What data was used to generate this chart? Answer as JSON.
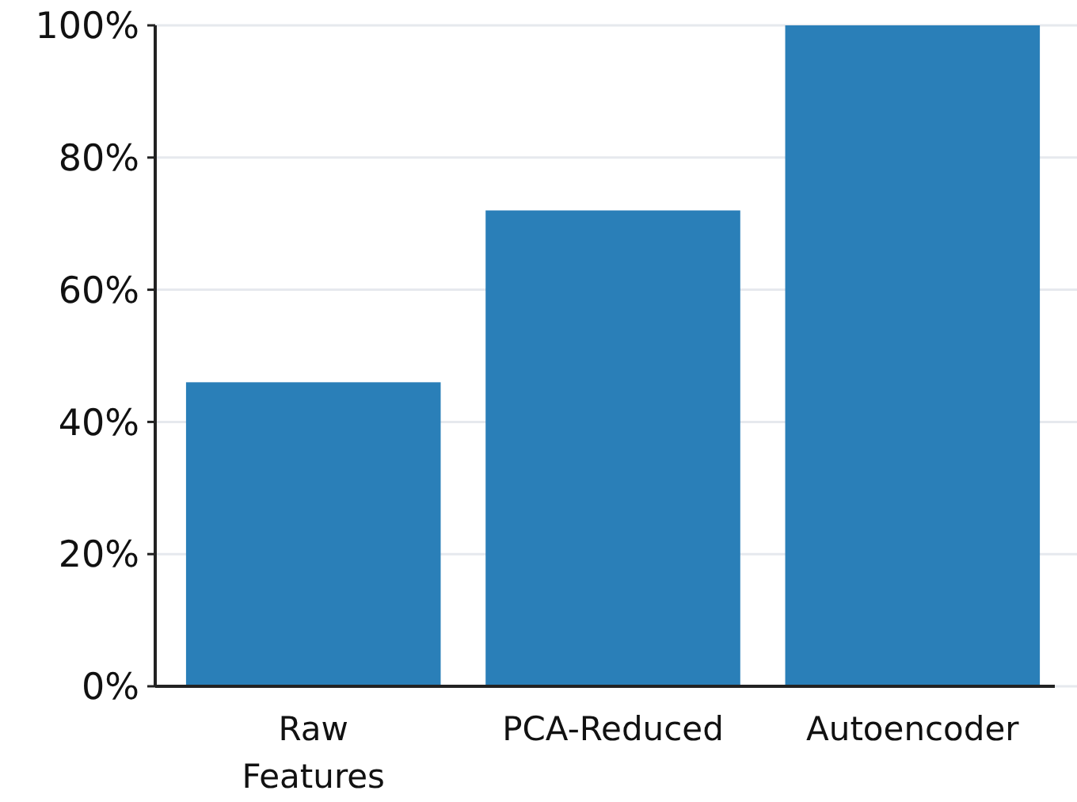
{
  "chart_data": {
    "type": "bar",
    "categories": [
      "Raw Features",
      "PCA-Reduced",
      "Autoencoder"
    ],
    "values": [
      46,
      72,
      100
    ],
    "color": "#2a7fb8",
    "ylim": [
      0,
      100
    ],
    "yticks": [
      {
        "value": 0,
        "label": "0%"
      },
      {
        "value": 20,
        "label": "20%"
      },
      {
        "value": 40,
        "label": "40%"
      },
      {
        "value": 60,
        "label": "60%"
      },
      {
        "value": 80,
        "label": "80%"
      },
      {
        "value": 100,
        "label": "100%"
      }
    ],
    "grid": "y"
  }
}
